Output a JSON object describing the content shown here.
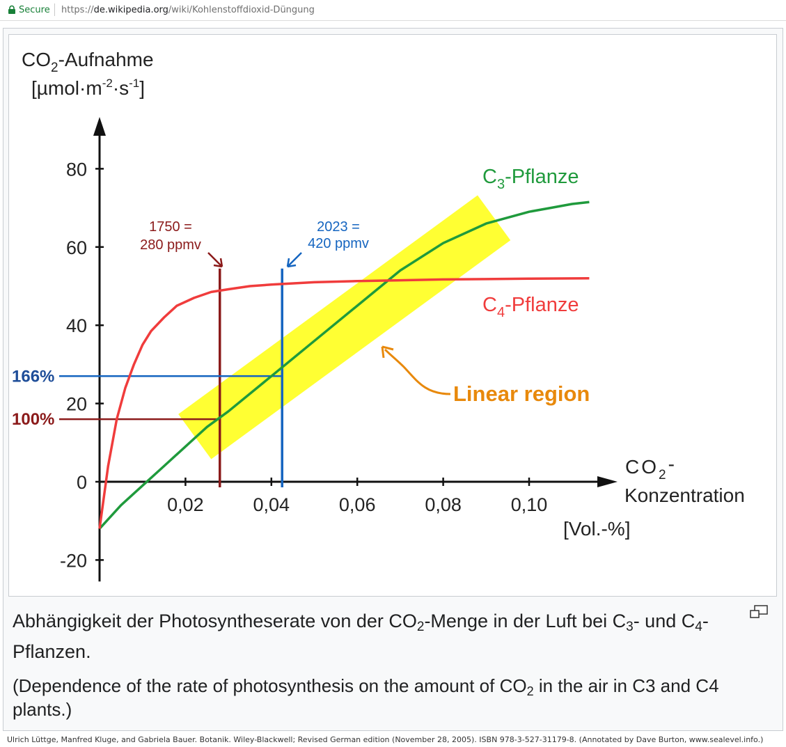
{
  "browser": {
    "secure_label": "Secure",
    "url_scheme": "https://",
    "url_host": "de.wikipedia.org",
    "url_path": "/wiki/Kohlenstoffdioxid-Düngung"
  },
  "caption": {
    "de_part1": "Abhängigkeit der Photosyntheserate von der CO",
    "de_sub1": "2",
    "de_part2": "-Menge in der Luft bei C",
    "de_sub2": "3",
    "de_part3": "- und C",
    "de_sub3": "4",
    "de_part4": "-Pflanzen.",
    "en_part1": "(Dependence of the rate of photosynthesis on the amount of CO",
    "en_sub1": "2",
    "en_part2": " in the air in C3 and C4 plants.)"
  },
  "credit": "Ulrich Lüttge, Manfred Kluge, and Gabriela Bauer. Botanik. Wiley-Blackwell; Revised German edition (November 28, 2005). ISBN 978-3-527-31179-8.   (Annotated by Dave Burton, www.sealevel.info.)",
  "chart_data": {
    "type": "line",
    "ylabel_main": "CO",
    "ylabel_sub": "2",
    "ylabel_rest": "-Aufnahme",
    "ylabel_unit_pre": "[µmol·m",
    "ylabel_unit_exp1": "-2",
    "ylabel_unit_mid": "·s",
    "ylabel_unit_exp2": "-1",
    "ylabel_unit_post": "]",
    "xlabel_main": "CO",
    "xlabel_sub": "2",
    "xlabel_rest": "-",
    "xlabel_line2": "Konzentration",
    "xlabel_unit": "[Vol.-%]",
    "xlim": [
      0,
      0.115
    ],
    "ylim": [
      -25,
      90
    ],
    "x_ticks": [
      {
        "value": 0.02,
        "label": "0,02"
      },
      {
        "value": 0.04,
        "label": "0,04"
      },
      {
        "value": 0.06,
        "label": "0,06"
      },
      {
        "value": 0.08,
        "label": "0,08"
      },
      {
        "value": 0.1,
        "label": "0,10"
      }
    ],
    "y_ticks": [
      {
        "value": -20,
        "label": "-20"
      },
      {
        "value": 0,
        "label": "0"
      },
      {
        "value": 20,
        "label": "20"
      },
      {
        "value": 40,
        "label": "40"
      },
      {
        "value": 60,
        "label": "60"
      },
      {
        "value": 80,
        "label": "80"
      }
    ],
    "series": [
      {
        "name": "C3-Pflanze",
        "name_pre": "C",
        "name_sub": "3",
        "name_post": "-Pflanze",
        "color": "#1f9a3c",
        "x": [
          0,
          0.005,
          0.01,
          0.015,
          0.02,
          0.025,
          0.03,
          0.04,
          0.05,
          0.06,
          0.07,
          0.08,
          0.09,
          0.1,
          0.105,
          0.11,
          0.114
        ],
        "y": [
          -12,
          -6,
          -1,
          4,
          9,
          14,
          18,
          27,
          36,
          45,
          54,
          61,
          66,
          69,
          70,
          71,
          71.5
        ]
      },
      {
        "name": "C4-Pflanze",
        "name_pre": "C",
        "name_sub": "4",
        "name_post": "-Pflanze",
        "color": "#f03c3c",
        "x": [
          0,
          0.002,
          0.004,
          0.006,
          0.008,
          0.01,
          0.012,
          0.015,
          0.018,
          0.022,
          0.026,
          0.03,
          0.035,
          0.04,
          0.05,
          0.06,
          0.07,
          0.08,
          0.09,
          0.1,
          0.114
        ],
        "y": [
          -12,
          4,
          16,
          24,
          30,
          35,
          38.5,
          42,
          45,
          47,
          48.5,
          49.2,
          50,
          50.4,
          51,
          51.3,
          51.5,
          51.7,
          51.8,
          51.9,
          52
        ]
      }
    ],
    "annotations": {
      "line_1750": {
        "x": 0.028,
        "y_top": 54.5,
        "color": "#8b1a1a",
        "label1": "1750 =",
        "label2": "280 ppmv"
      },
      "line_2023": {
        "x": 0.0425,
        "y_top": 54.5,
        "color": "#1565c0",
        "label1": "2023 =",
        "label2": "420 ppmv"
      },
      "h_166": {
        "y": 27,
        "label": "166%",
        "color": "#1f4e99",
        "x_end": 0.0425
      },
      "h_100": {
        "y": 16,
        "label": "100%",
        "color": "#8b1a1a",
        "x_end": 0.028
      },
      "linear_region": {
        "label": "Linear region",
        "color": "#e8890c",
        "band_color": "#ffff33",
        "x_start": 0.024,
        "x_end": 0.09
      }
    }
  }
}
